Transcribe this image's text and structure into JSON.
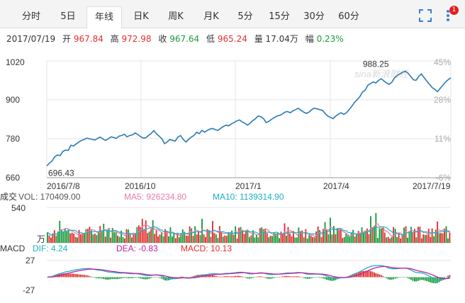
{
  "tabs": [
    {
      "label": "分时",
      "active": false
    },
    {
      "label": "5日",
      "active": false
    },
    {
      "label": "年线",
      "active": true
    },
    {
      "label": "日K",
      "active": false
    },
    {
      "label": "周K",
      "active": false
    },
    {
      "label": "月K",
      "active": false
    },
    {
      "label": "5分",
      "active": false
    },
    {
      "label": "15分",
      "active": false
    },
    {
      "label": "30分",
      "active": false
    },
    {
      "label": "60分",
      "active": false
    }
  ],
  "icons": {
    "fullscreen": "fullscreen-icon",
    "more": "more-vertical-icon"
  },
  "notification_count": "1",
  "quote": {
    "date": "2017/07/19",
    "open_label": "开",
    "open": "967.84",
    "high_label": "高",
    "high": "972.98",
    "close_label": "收",
    "close": "967.64",
    "low_label": "低",
    "low": "965.24",
    "volume_label": "量",
    "volume": "17.04万",
    "change_label": "幅",
    "change": "0.23%"
  },
  "colors": {
    "up": "#e0302e",
    "down": "#1a9a3a",
    "price_line": "#2a7ab8",
    "ma5": "#e87aa8",
    "ma10": "#1ab0c8",
    "dif": "#1ab0c8",
    "dea": "#c020a0",
    "grid": "#e6e6e6"
  },
  "watermark": "sina新浪财经",
  "chart_data": {
    "price": {
      "type": "line",
      "ylim": [
        660,
        1020
      ],
      "y_ticks": [
        "1020",
        "900",
        "780",
        "660"
      ],
      "pct_ticks": [
        "45%",
        "28%",
        "11%",
        "-6%"
      ],
      "x_ticks": [
        "2016/7/8",
        "2016/10",
        "2017/1",
        "2017/4",
        "2017/7/19"
      ],
      "max_label": "988.25",
      "min_label": "696.43",
      "values": [
        696.43,
        705,
        712,
        725,
        730,
        728,
        741,
        745,
        744,
        760,
        758,
        764,
        770,
        775,
        778,
        782,
        780,
        778,
        776,
        781,
        785,
        779,
        775,
        780,
        786,
        784,
        781,
        788,
        790,
        794,
        786,
        790,
        792,
        798,
        793,
        787,
        782,
        783,
        790,
        796,
        805,
        795,
        788,
        780,
        765,
        770,
        778,
        775,
        773,
        785,
        790,
        778,
        770,
        778,
        785,
        790,
        800,
        796,
        806,
        800,
        806,
        810,
        812,
        808,
        806,
        812,
        818,
        822,
        820,
        826,
        830,
        835,
        838,
        832,
        828,
        822,
        828,
        836,
        842,
        850,
        848,
        842,
        830,
        834,
        840,
        845,
        850,
        852,
        856,
        862,
        864,
        860,
        866,
        870,
        874,
        868,
        862,
        858,
        862,
        870,
        874,
        872,
        870,
        868,
        858,
        850,
        846,
        842,
        850,
        856,
        860,
        855,
        860,
        870,
        880,
        892,
        900,
        910,
        924,
        930,
        945,
        950,
        955,
        952,
        960,
        965,
        958,
        952,
        948,
        955,
        968,
        975,
        980,
        985,
        988.25,
        982,
        972,
        962,
        960,
        972,
        980,
        968,
        958,
        948,
        938,
        932,
        925,
        935,
        945,
        955,
        962,
        967.64
      ]
    },
    "volume": {
      "type": "bar",
      "label": "成交",
      "unit": "万",
      "y_top": "540",
      "vol_text": "VOL: 170409.00",
      "ma5_text": "MA5: 926234.80",
      "ma10_text": "MA10: 1139314.90"
    },
    "macd": {
      "type": "bar",
      "label": "MACD",
      "y_top": "27",
      "y_bottom": "-27",
      "dif_text": "DIF: 4.24",
      "dea_text": "DEA: -0.83",
      "macd_text": "MACD: 10.13"
    }
  }
}
